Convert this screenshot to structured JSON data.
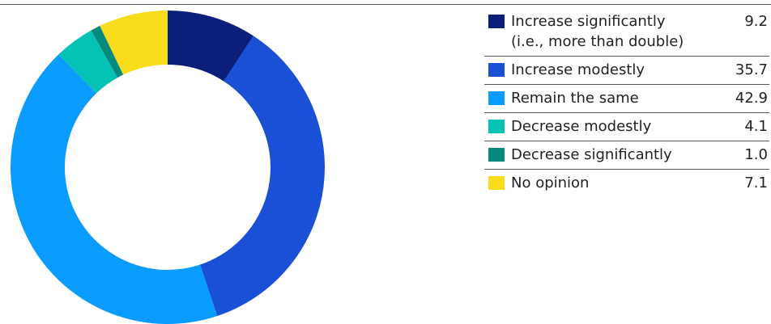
{
  "chart_data": {
    "type": "donut",
    "categories": [
      "Increase significantly\n(i.e., more than double)",
      "Increase modestly",
      "Remain the same",
      "Decrease modestly",
      "Decrease significantly",
      "No opinion"
    ],
    "values": [
      9.2,
      35.7,
      42.9,
      4.1,
      1.0,
      7.1
    ],
    "value_labels": [
      "9.2",
      "35.7",
      "42.9",
      "4.1",
      "1.0",
      "7.1"
    ],
    "colors": [
      "#0b1f7a",
      "#1a50d6",
      "#0a9bff",
      "#05c3b4",
      "#078a7e",
      "#f9dc1c"
    ]
  }
}
